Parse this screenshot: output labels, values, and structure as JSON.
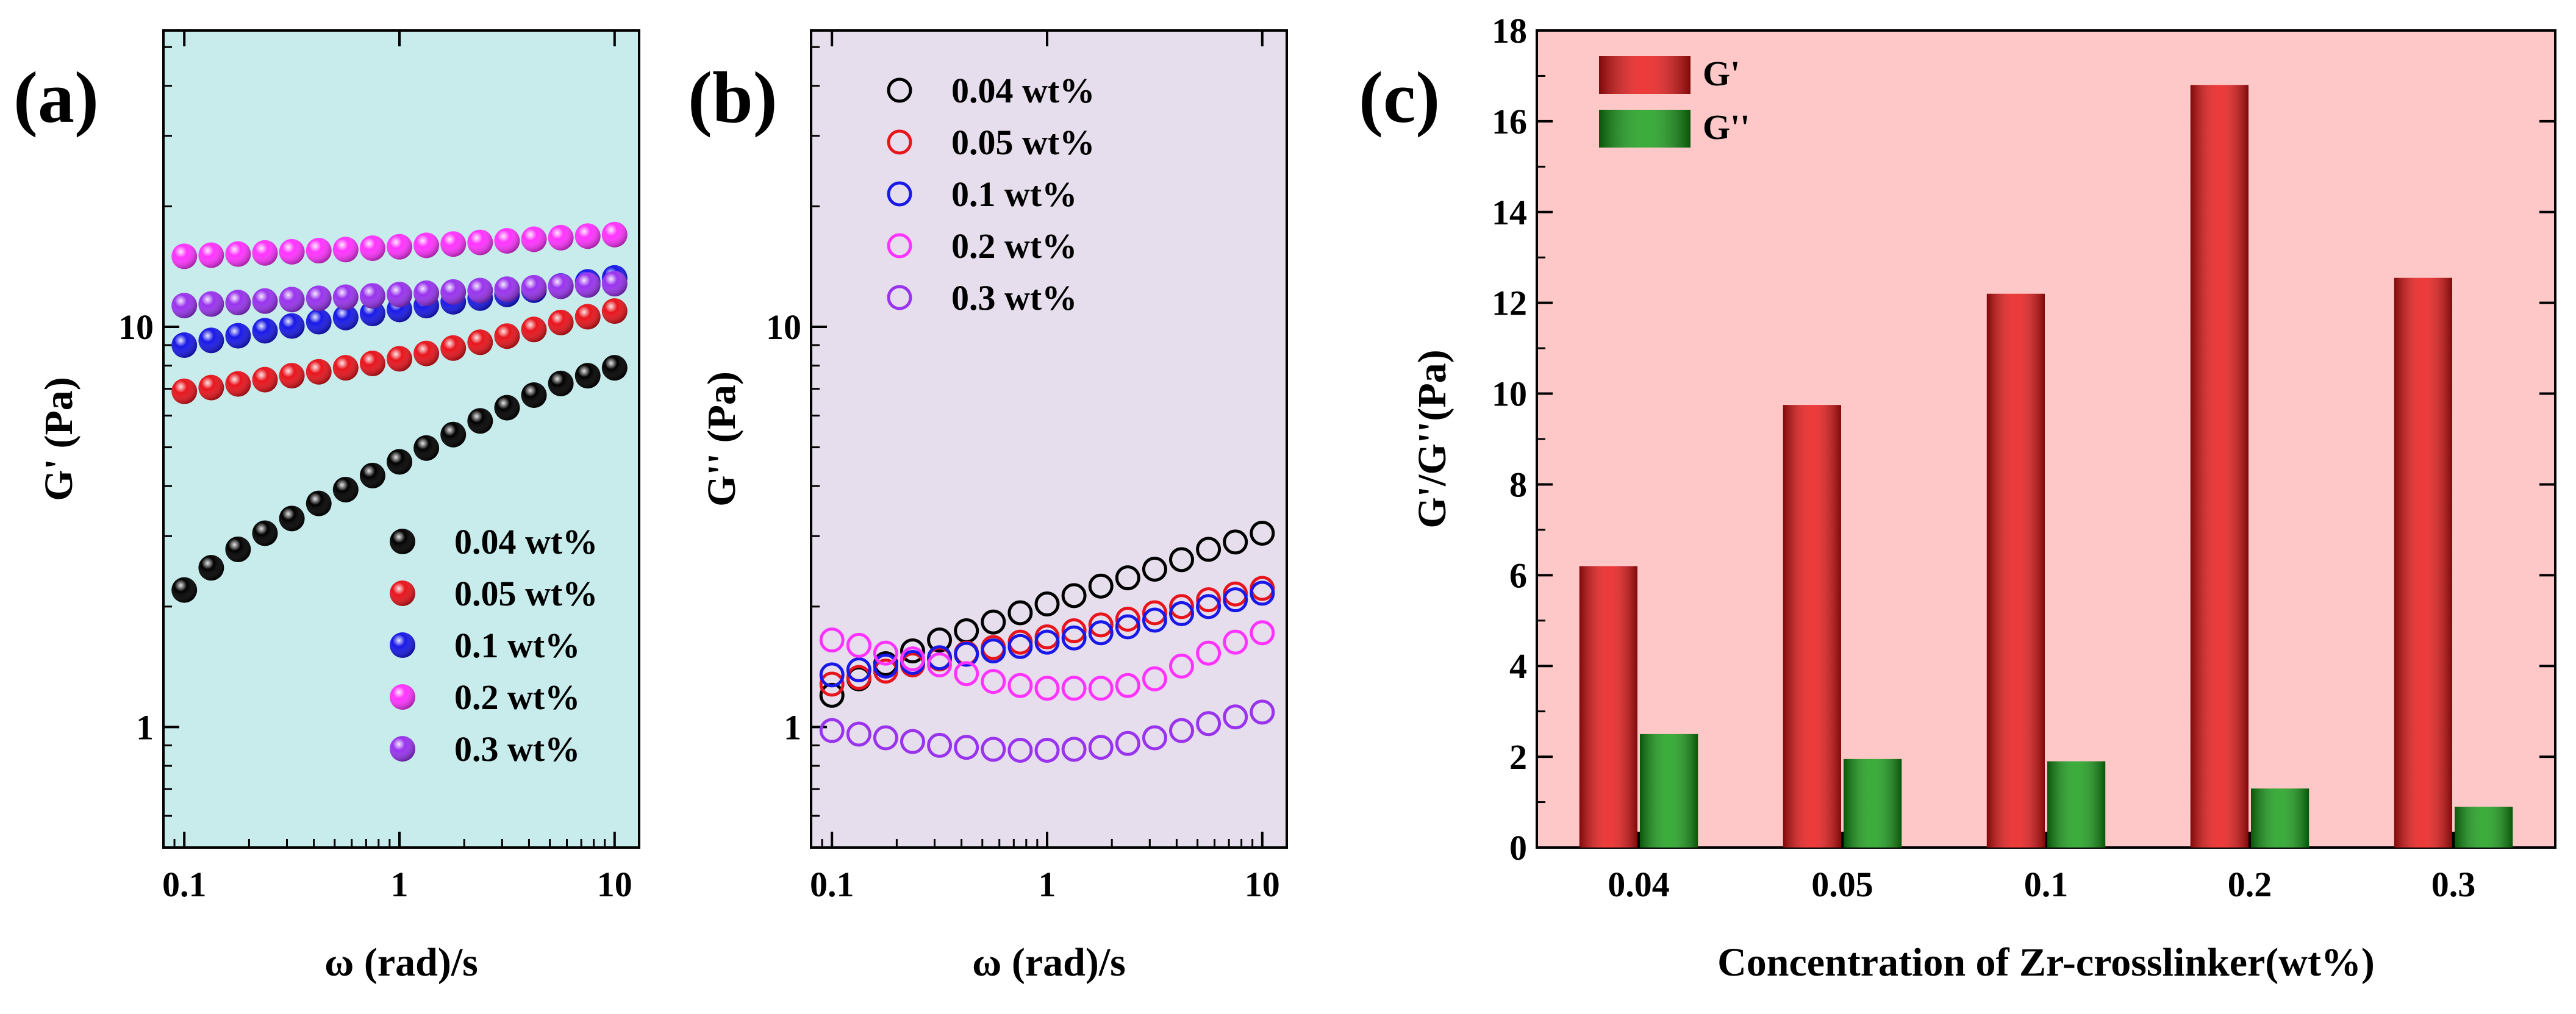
{
  "chart_data": [
    {
      "type": "scatter",
      "panel_label": "(a)",
      "xlabel": "ω (rad)/s",
      "ylabel": "G' (Pa)",
      "xscale": "log",
      "yscale": "log",
      "xlim": [
        0.08,
        13
      ],
      "ylim": [
        0.5,
        55
      ],
      "xticks": [
        {
          "v": 0.1,
          "label": "0.1"
        },
        {
          "v": 1,
          "label": "1"
        },
        {
          "v": 10,
          "label": "10"
        }
      ],
      "yticks": [
        {
          "v": 1,
          "label": "1"
        },
        {
          "v": 10,
          "label": "10"
        }
      ],
      "background": "#c8ecec",
      "marker": "filled",
      "legend_position": "bottom-right",
      "x": [
        0.1,
        0.1334,
        0.1778,
        0.2371,
        0.3162,
        0.4217,
        0.5623,
        0.7499,
        1.0,
        1.3335,
        1.7783,
        2.3714,
        3.1623,
        4.217,
        5.6234,
        7.4989,
        10.0
      ],
      "series": [
        {
          "name": "0.04 wt%",
          "color": "#000000",
          "values": [
            2.2,
            2.5,
            2.78,
            3.05,
            3.32,
            3.62,
            3.92,
            4.25,
            4.6,
            4.98,
            5.38,
            5.82,
            6.28,
            6.75,
            7.22,
            7.55,
            7.9
          ]
        },
        {
          "name": "0.05 wt%",
          "color": "#e8141c",
          "values": [
            6.9,
            7.05,
            7.2,
            7.38,
            7.55,
            7.72,
            7.9,
            8.1,
            8.32,
            8.58,
            8.85,
            9.15,
            9.48,
            9.85,
            10.25,
            10.6,
            10.95
          ]
        },
        {
          "name": "0.1 wt%",
          "color": "#1818e8",
          "values": [
            9.0,
            9.25,
            9.5,
            9.78,
            10.05,
            10.3,
            10.55,
            10.8,
            11.05,
            11.3,
            11.55,
            11.8,
            12.05,
            12.35,
            12.65,
            12.95,
            13.25
          ]
        },
        {
          "name": "0.2 wt%",
          "color": "#ff33ff",
          "values": [
            15.0,
            15.1,
            15.2,
            15.3,
            15.4,
            15.5,
            15.6,
            15.72,
            15.85,
            15.98,
            16.1,
            16.25,
            16.4,
            16.55,
            16.7,
            16.85,
            17.0
          ]
        },
        {
          "name": "0.3 wt%",
          "color": "#9933ee",
          "values": [
            11.3,
            11.4,
            11.5,
            11.6,
            11.7,
            11.78,
            11.86,
            11.95,
            12.04,
            12.13,
            12.22,
            12.32,
            12.42,
            12.52,
            12.62,
            12.72,
            12.82
          ]
        }
      ]
    },
    {
      "type": "scatter",
      "panel_label": "(b)",
      "xlabel": "ω (rad)/s",
      "ylabel": "G'' (Pa)",
      "xscale": "log",
      "yscale": "log",
      "xlim": [
        0.08,
        13
      ],
      "ylim": [
        0.5,
        55
      ],
      "xticks": [
        {
          "v": 0.1,
          "label": "0.1"
        },
        {
          "v": 1,
          "label": "1"
        },
        {
          "v": 10,
          "label": "10"
        }
      ],
      "yticks": [
        {
          "v": 1,
          "label": "1"
        },
        {
          "v": 10,
          "label": "10"
        }
      ],
      "background": "#e6deec",
      "marker": "open",
      "legend_position": "top-left",
      "x": [
        0.1,
        0.1334,
        0.1778,
        0.2371,
        0.3162,
        0.4217,
        0.5623,
        0.7499,
        1.0,
        1.3335,
        1.7783,
        2.3714,
        3.1623,
        4.217,
        5.6234,
        7.4989,
        10.0
      ],
      "series": [
        {
          "name": "0.04 wt%",
          "color": "#000000",
          "values": [
            1.2,
            1.32,
            1.44,
            1.55,
            1.65,
            1.74,
            1.83,
            1.93,
            2.03,
            2.13,
            2.25,
            2.36,
            2.48,
            2.62,
            2.78,
            2.9,
            3.05
          ]
        },
        {
          "name": "0.05 wt%",
          "color": "#e8141c",
          "values": [
            1.28,
            1.33,
            1.38,
            1.43,
            1.48,
            1.53,
            1.58,
            1.63,
            1.68,
            1.74,
            1.8,
            1.86,
            1.93,
            2.0,
            2.08,
            2.15,
            2.22
          ]
        },
        {
          "name": "0.1 wt%",
          "color": "#1818e8",
          "values": [
            1.35,
            1.39,
            1.42,
            1.45,
            1.49,
            1.52,
            1.55,
            1.59,
            1.63,
            1.67,
            1.72,
            1.78,
            1.85,
            1.92,
            2.0,
            2.08,
            2.16
          ]
        },
        {
          "name": "0.2 wt%",
          "color": "#ff33ff",
          "values": [
            1.65,
            1.6,
            1.53,
            1.48,
            1.43,
            1.36,
            1.3,
            1.27,
            1.25,
            1.25,
            1.25,
            1.27,
            1.32,
            1.42,
            1.53,
            1.63,
            1.72
          ]
        },
        {
          "name": "0.3 wt%",
          "color": "#9933ee",
          "values": [
            0.98,
            0.96,
            0.94,
            0.92,
            0.9,
            0.89,
            0.88,
            0.875,
            0.875,
            0.88,
            0.89,
            0.91,
            0.94,
            0.98,
            1.02,
            1.06,
            1.09
          ]
        }
      ]
    },
    {
      "type": "bar",
      "panel_label": "(c)",
      "xlabel": "Concentration of Zr-crosslinker(wt%)",
      "ylabel": "G'/G''(Pa)",
      "ylim": [
        0,
        18
      ],
      "yticks": [
        0,
        2,
        4,
        6,
        8,
        10,
        12,
        14,
        16,
        18
      ],
      "background": "#fec8c8",
      "legend_position": "top-left",
      "categories": [
        "0.04",
        "0.05",
        "0.1",
        "0.2",
        "0.3"
      ],
      "series": [
        {
          "name": "G'",
          "color": "#e81010",
          "values": [
            6.2,
            9.75,
            12.2,
            16.8,
            12.55
          ]
        },
        {
          "name": "G''",
          "color": "#119a11",
          "values": [
            2.5,
            1.95,
            1.9,
            1.3,
            0.9
          ]
        }
      ]
    }
  ]
}
